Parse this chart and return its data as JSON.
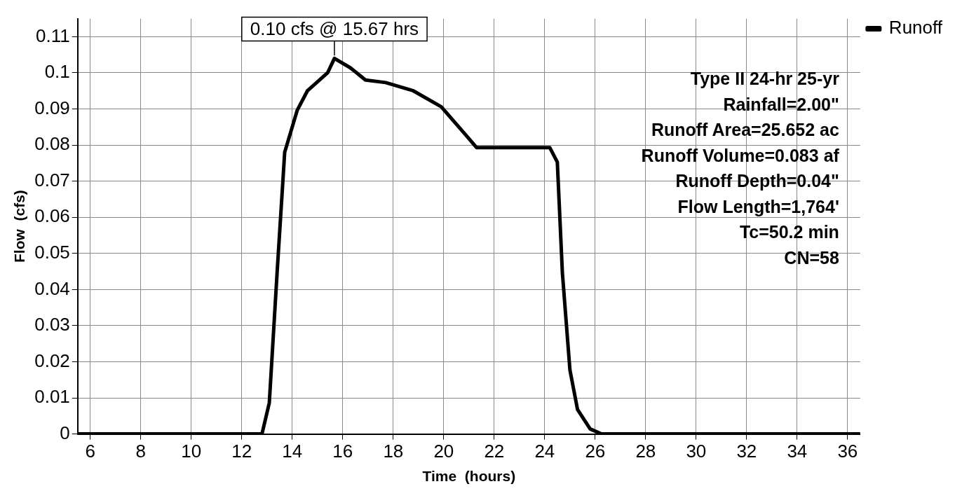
{
  "chart_data": {
    "type": "line",
    "xlabel": "Time  (hours)",
    "ylabel": "Flow  (cfs)",
    "series": [
      {
        "name": "Runoff",
        "color": "#000000",
        "x": [
          5.5,
          12.8,
          13.09,
          13.4,
          13.7,
          14.2,
          14.6,
          15.4,
          15.67,
          16.3,
          16.9,
          17.7,
          18.8,
          19.9,
          20.8,
          21.3,
          24.2,
          24.5,
          24.7,
          25.0,
          25.3,
          25.8,
          26.25,
          36.5
        ],
        "values": [
          0,
          0,
          0.0086,
          0.0447,
          0.078,
          0.0897,
          0.095,
          0.1,
          0.104,
          0.1014,
          0.098,
          0.0973,
          0.095,
          0.0906,
          0.0834,
          0.0793,
          0.0793,
          0.0753,
          0.0447,
          0.0177,
          0.0068,
          0.0014,
          0,
          0
        ]
      }
    ],
    "xlim": [
      5.5,
      36.5
    ],
    "xticks": [
      6,
      8,
      10,
      12,
      14,
      16,
      18,
      20,
      22,
      24,
      26,
      28,
      30,
      32,
      34,
      36
    ],
    "ylim": [
      0,
      0.115
    ],
    "yticks": [
      0,
      0.01,
      0.02,
      0.03,
      0.04,
      0.05,
      0.06,
      0.07,
      0.08,
      0.09,
      0.1,
      0.11
    ],
    "annotations": [
      {
        "text": "0.10 cfs @ 15.67 hrs",
        "x": 15.67,
        "y": 0.104
      },
      "Type II 24-hr 25-yr",
      "Rainfall=2.00\"",
      "Runoff Area=25.652 ac",
      "Runoff Volume=0.083 af",
      "Runoff Depth=0.04\"",
      "Flow Length=1,764'",
      "Tc=50.2 min",
      "CN=58"
    ],
    "grid": true,
    "legend": "top right",
    "marker": "none",
    "line_style": "solid"
  }
}
